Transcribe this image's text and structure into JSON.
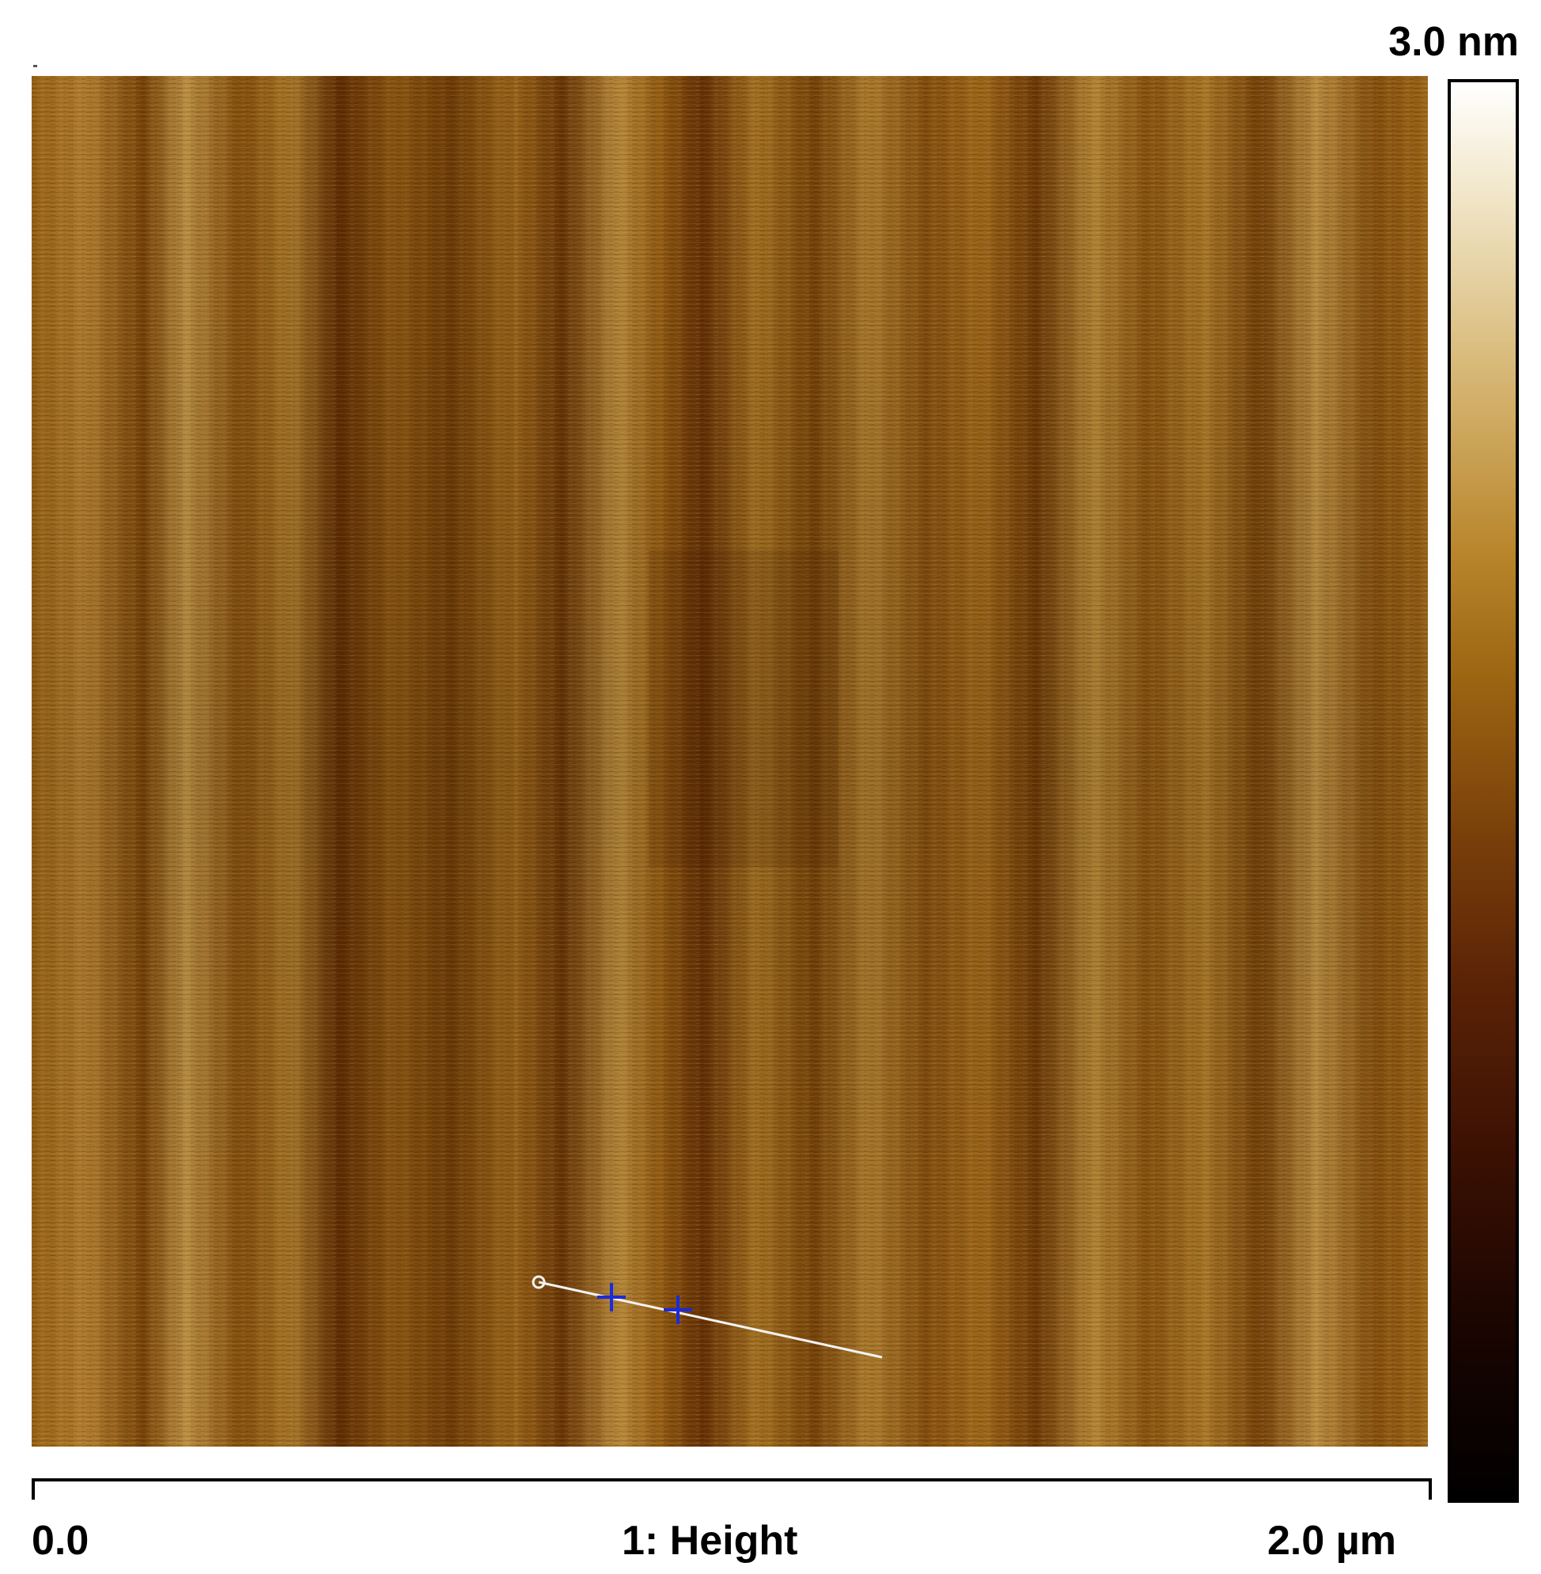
{
  "scale": {
    "max_label": "3.0 nm",
    "min_label": "0.0",
    "length_label": "2.0 µm"
  },
  "channel": {
    "label": "1: Height"
  },
  "colormap": {
    "stops": [
      "#ffffff",
      "#d8b978",
      "#9c6512",
      "#5a2206",
      "#000000"
    ]
  },
  "cursor": {
    "line_color": "#f2f2f2",
    "marker_color": "#1a2bd8"
  }
}
